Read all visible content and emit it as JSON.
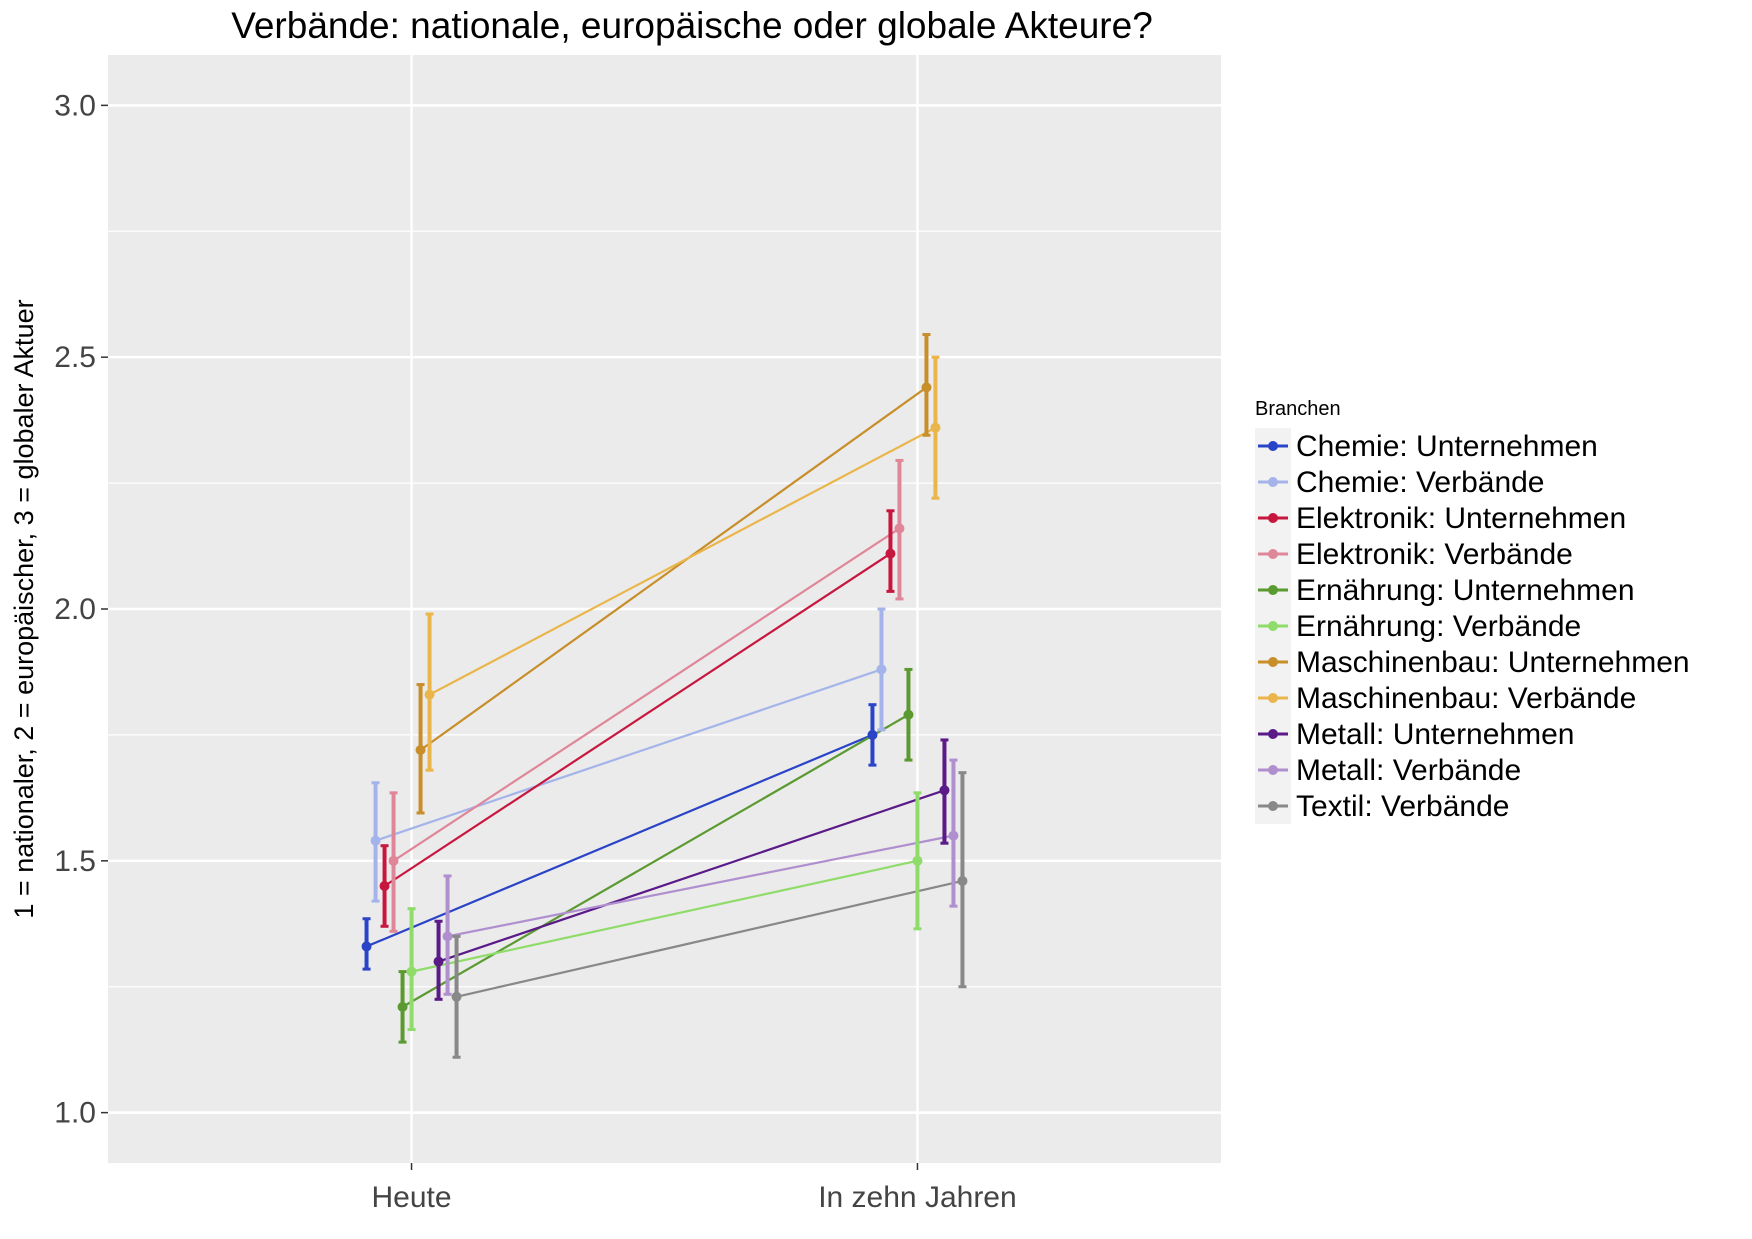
{
  "chart_data": {
    "type": "line",
    "title": "Verbände: nationale, europäische oder globale Akteure?",
    "xlabel": "",
    "ylabel": "1 = nationaler, 2 = europäischer, 3 = globaler Aktuer",
    "categories": [
      "Heute",
      "In zehn Jahren"
    ],
    "ylim": [
      0.9,
      3.1
    ],
    "yticks": [
      1.0,
      1.5,
      2.0,
      2.5,
      3.0
    ],
    "ytick_labels": [
      "1.0",
      "1.5",
      "2.0",
      "2.5",
      "3.0"
    ],
    "grid": true,
    "error_bars": true,
    "legend": {
      "title": "Branchen",
      "position": "right"
    },
    "series": [
      {
        "name": "Chemie: Unternehmen",
        "color": "#2a44c8",
        "values": [
          1.33,
          1.75
        ],
        "lower": [
          1.285,
          1.69
        ],
        "upper": [
          1.385,
          1.81
        ]
      },
      {
        "name": "Chemie: Verbände",
        "color": "#a4b4ea",
        "values": [
          1.54,
          1.88
        ],
        "lower": [
          1.42,
          1.76
        ],
        "upper": [
          1.655,
          2.0
        ]
      },
      {
        "name": "Elektronik: Unternehmen",
        "color": "#c8173f",
        "values": [
          1.45,
          2.11
        ],
        "lower": [
          1.37,
          2.035
        ],
        "upper": [
          1.53,
          2.195
        ]
      },
      {
        "name": "Elektronik: Verbände",
        "color": "#e08699",
        "values": [
          1.5,
          2.16
        ],
        "lower": [
          1.36,
          2.02
        ],
        "upper": [
          1.635,
          2.295
        ]
      },
      {
        "name": "Ernährung: Unternehmen",
        "color": "#5b9a30",
        "values": [
          1.21,
          1.79
        ],
        "lower": [
          1.14,
          1.7
        ],
        "upper": [
          1.28,
          1.88
        ]
      },
      {
        "name": "Ernährung: Verbände",
        "color": "#8fdc6a",
        "values": [
          1.28,
          1.5
        ],
        "lower": [
          1.165,
          1.365
        ],
        "upper": [
          1.405,
          1.635
        ]
      },
      {
        "name": "Maschinenbau: Unternehmen",
        "color": "#c78e2a",
        "values": [
          1.72,
          2.44
        ],
        "lower": [
          1.595,
          2.345
        ],
        "upper": [
          1.85,
          2.545
        ]
      },
      {
        "name": "Maschinenbau: Verbände",
        "color": "#eab64b",
        "values": [
          1.83,
          2.36
        ],
        "lower": [
          1.68,
          2.22
        ],
        "upper": [
          1.99,
          2.5
        ]
      },
      {
        "name": "Metall: Unternehmen",
        "color": "#5a1a88",
        "values": [
          1.3,
          1.64
        ],
        "lower": [
          1.225,
          1.535
        ],
        "upper": [
          1.38,
          1.74
        ]
      },
      {
        "name": "Metall: Verbände",
        "color": "#b08fcf",
        "values": [
          1.35,
          1.55
        ],
        "lower": [
          1.235,
          1.41
        ],
        "upper": [
          1.47,
          1.7
        ]
      },
      {
        "name": "Textil: Verbände",
        "color": "#888888",
        "values": [
          1.23,
          1.46
        ],
        "lower": [
          1.11,
          1.25
        ],
        "upper": [
          1.35,
          1.675
        ]
      }
    ]
  }
}
